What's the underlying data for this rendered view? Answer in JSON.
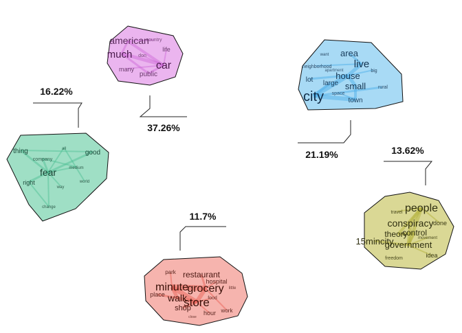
{
  "clusters": [
    {
      "id": "car",
      "percent": "37.26%",
      "fill": "#e8a8ec",
      "edge": "#cc66d6",
      "words": [
        "american",
        "country",
        "life",
        "much",
        "don",
        "car",
        "many",
        "public"
      ]
    },
    {
      "id": "city",
      "percent": "21.19%",
      "fill": "#9fd6f4",
      "edge": "#4fb0ea",
      "words": [
        "area",
        "want",
        "neighborhood",
        "live",
        "apartment",
        "big",
        "house",
        "lot",
        "large",
        "small",
        "city",
        "space",
        "rural",
        "town"
      ]
    },
    {
      "id": "fear",
      "percent": "16.22%",
      "fill": "#8ed9bb",
      "edge": "#4cbf93",
      "words": [
        "thing",
        "all",
        "good",
        "company",
        "medium",
        "fear",
        "right",
        "world",
        "way",
        "change"
      ]
    },
    {
      "id": "conspiracy",
      "percent": "13.62%",
      "fill": "#d6d48a",
      "edge": "#b4b23c",
      "words": [
        "travel",
        "people",
        "conspiracy",
        "done",
        "theory",
        "control",
        "movement",
        "15mincity",
        "government",
        "idea",
        "freedom"
      ]
    },
    {
      "id": "grocery",
      "percent": "11.7%",
      "fill": "#f4a7a0",
      "edge": "#e85a50",
      "words": [
        "park",
        "restaurant",
        "hospital",
        "minute",
        "grocery",
        "little",
        "place",
        "walk",
        "food",
        "store",
        "shop",
        "hour",
        "work",
        "close"
      ]
    }
  ]
}
